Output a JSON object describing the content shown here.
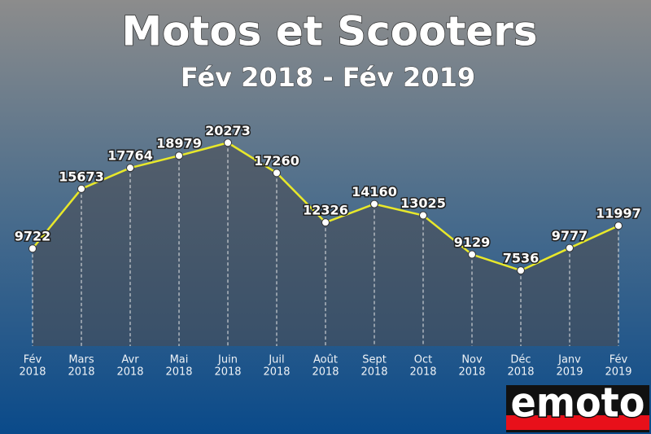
{
  "chart_data": {
    "type": "line",
    "title": "Motos et Scooters",
    "subtitle": "Fév 2018 - Fév 2019",
    "categories": [
      [
        "Fév",
        "2018"
      ],
      [
        "Mars",
        "2018"
      ],
      [
        "Avr",
        "2018"
      ],
      [
        "Mai",
        "2018"
      ],
      [
        "Juin",
        "2018"
      ],
      [
        "Juil",
        "2018"
      ],
      [
        "Août",
        "2018"
      ],
      [
        "Sept",
        "2018"
      ],
      [
        "Oct",
        "2018"
      ],
      [
        "Nov",
        "2018"
      ],
      [
        "Déc",
        "2018"
      ],
      [
        "Janv",
        "2019"
      ],
      [
        "Fév",
        "2019"
      ]
    ],
    "values": [
      9722,
      15673,
      17764,
      18979,
      20273,
      17260,
      12326,
      14160,
      13025,
      9129,
      7536,
      9777,
      11997
    ],
    "color": "#e8e82a",
    "ylim": [
      0,
      22000
    ]
  },
  "logo": "emoto"
}
